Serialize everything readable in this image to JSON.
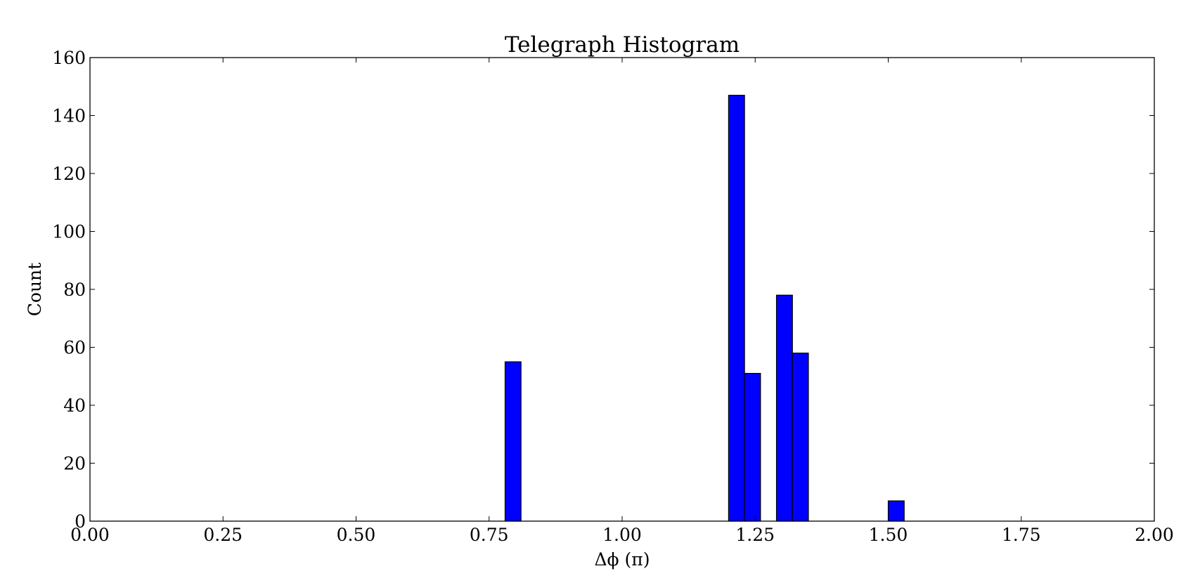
{
  "chart_data": {
    "type": "bar",
    "title": "Telegraph Histogram",
    "xlabel": "Δϕ (π)",
    "ylabel": "Count",
    "xlim": [
      0,
      2
    ],
    "ylim": [
      0,
      160
    ],
    "grid": false,
    "bar_color": "#0000ff",
    "edge_color": "#000000",
    "bin_width": 0.03,
    "x_ticks": [
      0,
      0.25,
      0.5,
      0.75,
      1.0,
      1.25,
      1.5,
      1.75,
      2.0
    ],
    "x_tick_labels": [
      "0.00",
      "0.25",
      "0.50",
      "0.75",
      "1.00",
      "1.25",
      "1.50",
      "1.75",
      "2.00"
    ],
    "y_ticks": [
      0,
      20,
      40,
      60,
      80,
      100,
      120,
      140,
      160
    ],
    "y_tick_labels": [
      "0",
      "20",
      "40",
      "60",
      "80",
      "100",
      "120",
      "140",
      "160"
    ],
    "bins": [
      {
        "x0": 0.0,
        "x1": 0.03,
        "count": 0
      },
      {
        "x0": 0.78,
        "x1": 0.81,
        "count": 55
      },
      {
        "x0": 1.2,
        "x1": 1.23,
        "count": 147
      },
      {
        "x0": 1.23,
        "x1": 1.26,
        "count": 51
      },
      {
        "x0": 1.29,
        "x1": 1.32,
        "count": 78
      },
      {
        "x0": 1.32,
        "x1": 1.35,
        "count": 58
      },
      {
        "x0": 1.5,
        "x1": 1.53,
        "count": 7
      }
    ]
  }
}
